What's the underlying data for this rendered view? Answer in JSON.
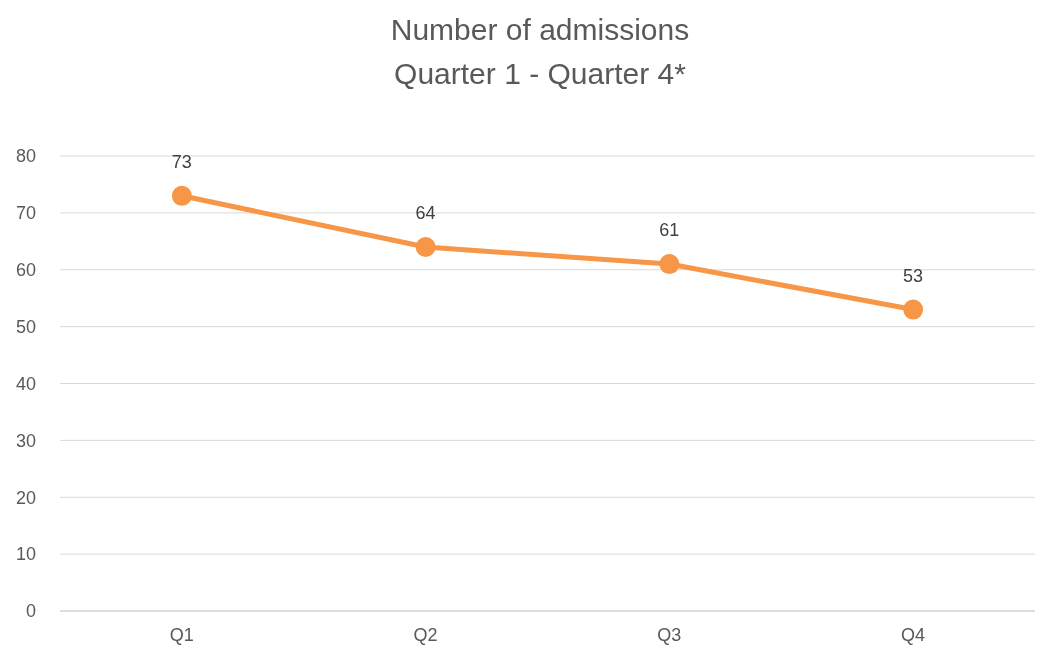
{
  "chart_data": {
    "type": "line",
    "title": "Number of admissions",
    "subtitle": "Quarter 1 - Quarter 4*",
    "categories": [
      "Q1",
      "Q2",
      "Q3",
      "Q4"
    ],
    "series": [
      {
        "color": "#f79646",
        "values": [
          73,
          64,
          61,
          53
        ]
      }
    ],
    "ylim": [
      0,
      80
    ],
    "yticks": [
      0,
      10,
      20,
      30,
      40,
      50,
      60,
      70,
      80
    ],
    "grid": "y",
    "marker": "circle",
    "data_labels": true
  }
}
